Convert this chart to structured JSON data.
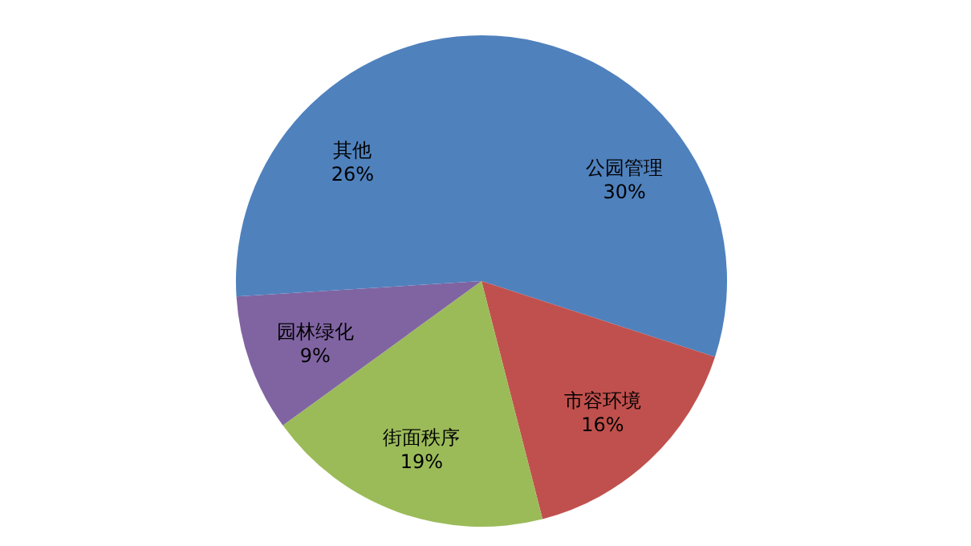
{
  "chart_data": {
    "type": "pie",
    "categories": [
      "公园管理",
      "市容环境",
      "街面秩序",
      "园林绿化",
      "其他"
    ],
    "values": [
      30,
      16,
      19,
      9,
      26
    ],
    "value_labels": [
      "30%",
      "16%",
      "19%",
      "9%",
      "26%"
    ],
    "colors": [
      "#4f81bd",
      "#c0504d",
      "#9bbb59",
      "#8064a2",
      "#4f81bd"
    ]
  }
}
